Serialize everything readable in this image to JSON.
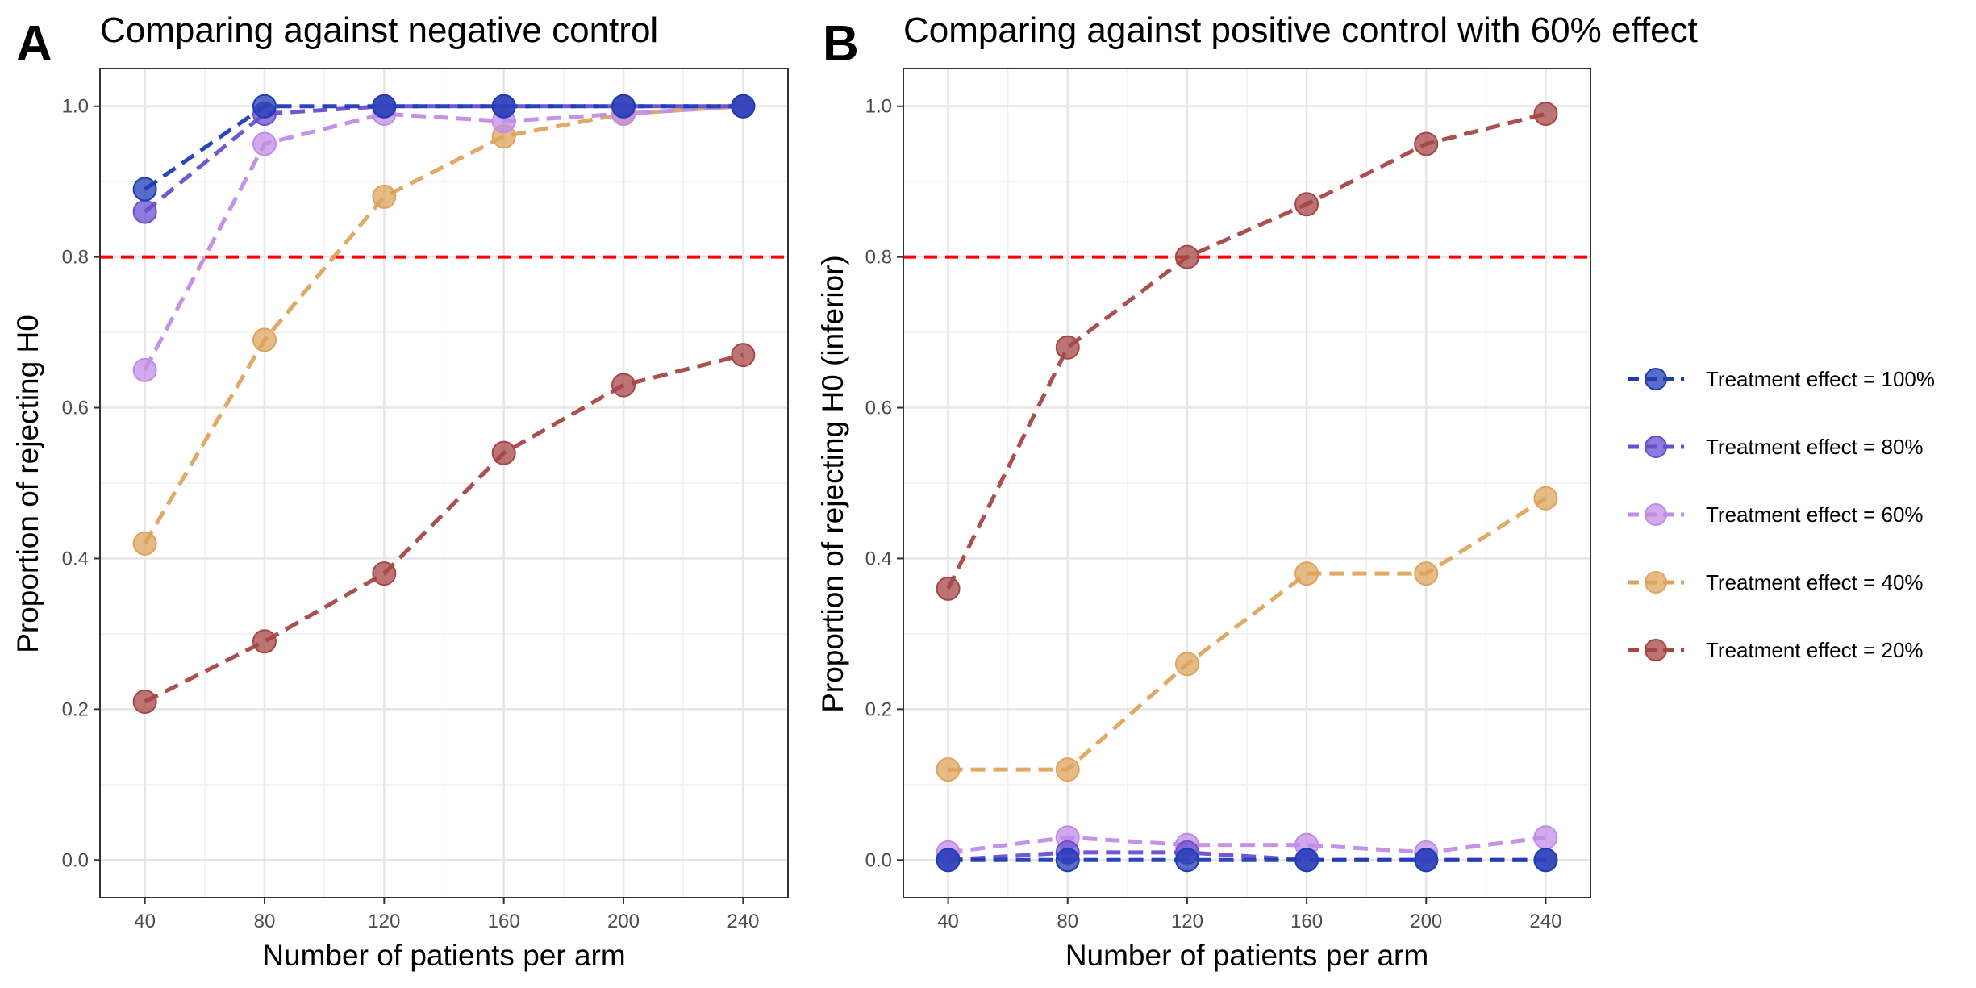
{
  "legend": {
    "entries": [
      {
        "label": "Treatment effect = 100%",
        "color": "#1f3cb4"
      },
      {
        "label": "Treatment effect = 80%",
        "color": "#6a4fcf"
      },
      {
        "label": "Treatment effect = 60%",
        "color": "#c18ce6"
      },
      {
        "label": "Treatment effect = 40%",
        "color": "#dea45e"
      },
      {
        "label": "Treatment effect = 20%",
        "color": "#a64646"
      }
    ],
    "placement": "right"
  },
  "reference_line": {
    "y": 0.8,
    "color": "#ff0000",
    "style": "dashed"
  },
  "chart_data": [
    {
      "type": "line",
      "panel": "A",
      "title": "Comparing against negative control",
      "xlabel": "Number of patients per arm",
      "ylabel": "Proportion of rejecting H0",
      "x": [
        40,
        80,
        120,
        160,
        200,
        240
      ],
      "xlim": [
        25,
        255
      ],
      "ylim": [
        -0.05,
        1.05
      ],
      "xticks": [
        "40",
        "80",
        "120",
        "160",
        "200",
        "240"
      ],
      "yticks": [
        "0.0",
        "0.2",
        "0.4",
        "0.6",
        "0.8",
        "1.0"
      ],
      "grid": true,
      "series": [
        {
          "name": "Treatment effect = 20%",
          "color": "#a64646",
          "values": [
            0.21,
            0.29,
            0.38,
            0.54,
            0.63,
            0.67
          ]
        },
        {
          "name": "Treatment effect = 40%",
          "color": "#dea45e",
          "values": [
            0.42,
            0.69,
            0.88,
            0.96,
            0.99,
            1.0
          ]
        },
        {
          "name": "Treatment effect = 60%",
          "color": "#c18ce6",
          "values": [
            0.65,
            0.95,
            0.99,
            0.98,
            0.99,
            1.0
          ]
        },
        {
          "name": "Treatment effect = 80%",
          "color": "#6a4fcf",
          "values": [
            0.86,
            0.99,
            1.0,
            1.0,
            1.0,
            1.0
          ]
        },
        {
          "name": "Treatment effect = 100%",
          "color": "#1f3cb4",
          "values": [
            0.89,
            1.0,
            1.0,
            1.0,
            1.0,
            1.0
          ]
        }
      ]
    },
    {
      "type": "line",
      "panel": "B",
      "title": "Comparing against positive control with 60% effect",
      "xlabel": "Number of patients per arm",
      "ylabel": "Proportion of rejecting H0 (inferior)",
      "x": [
        40,
        80,
        120,
        160,
        200,
        240
      ],
      "xlim": [
        25,
        255
      ],
      "ylim": [
        -0.05,
        1.05
      ],
      "xticks": [
        "40",
        "80",
        "120",
        "160",
        "200",
        "240"
      ],
      "yticks": [
        "0.0",
        "0.2",
        "0.4",
        "0.6",
        "0.8",
        "1.0"
      ],
      "grid": true,
      "series": [
        {
          "name": "Treatment effect = 20%",
          "color": "#a64646",
          "values": [
            0.36,
            0.68,
            0.8,
            0.87,
            0.95,
            0.99
          ]
        },
        {
          "name": "Treatment effect = 40%",
          "color": "#dea45e",
          "values": [
            0.12,
            0.12,
            0.26,
            0.38,
            0.38,
            0.48
          ]
        },
        {
          "name": "Treatment effect = 60%",
          "color": "#c18ce6",
          "values": [
            0.01,
            0.03,
            0.02,
            0.02,
            0.01,
            0.03
          ]
        },
        {
          "name": "Treatment effect = 80%",
          "color": "#6a4fcf",
          "values": [
            0.0,
            0.01,
            0.01,
            0.0,
            0.0,
            0.0
          ]
        },
        {
          "name": "Treatment effect = 100%",
          "color": "#1f3cb4",
          "values": [
            0.0,
            0.0,
            0.0,
            0.0,
            0.0,
            0.0
          ]
        }
      ]
    }
  ]
}
